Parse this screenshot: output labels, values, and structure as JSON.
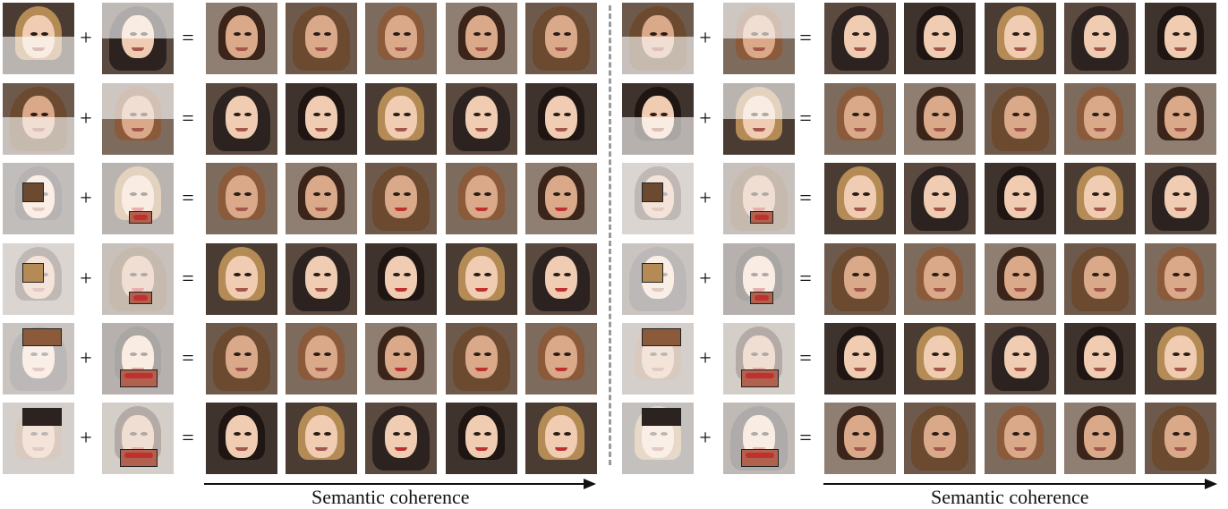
{
  "figure": {
    "plus_symbol": "+",
    "equals_symbol": "=",
    "left_caption": "Semantic coherence",
    "right_caption": "Semantic coherence",
    "rows_per_panel": 6,
    "outputs_per_row": 5
  },
  "palette": {
    "skin": [
      "#e8c3a4",
      "#d9a98a",
      "#c9946f",
      "#b98262",
      "#f0cdb2",
      "#a87050"
    ],
    "hair": [
      "#3b2419",
      "#1f1512",
      "#6b4a2f",
      "#b48a55",
      "#8a5a3a",
      "#2c2320"
    ],
    "background": [
      "#6e5a4c",
      "#4a3c33",
      "#7d6b5e",
      "#5b4a40",
      "#8f7e72",
      "#3f342d"
    ],
    "lips": "#c0302f"
  }
}
